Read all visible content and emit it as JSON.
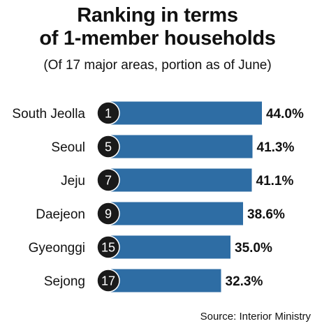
{
  "header": {
    "title_line1": "Ranking in terms",
    "title_line2": "of 1-member households",
    "subtitle": "(Of 17 major areas, portion as of June)"
  },
  "source": "Source: Interior Ministry",
  "colors": {
    "bar": "#2e6da4",
    "rank_circle": "#1a1a1a",
    "text": "#111111"
  },
  "chart_data": {
    "type": "bar",
    "orientation": "horizontal",
    "title": "Ranking in terms of 1-member households",
    "subtitle": "(Of 17 major areas, portion as of June)",
    "categories": [
      "South Jeolla",
      "Seoul",
      "Jeju",
      "Daejeon",
      "Gyeonggi",
      "Sejong"
    ],
    "ranks": [
      "1",
      "5",
      "7",
      "9",
      "15",
      "17"
    ],
    "values": [
      44.0,
      41.3,
      41.1,
      38.6,
      35.0,
      32.3
    ],
    "value_labels": [
      "44.0%",
      "41.3%",
      "41.1%",
      "38.6%",
      "35.0%",
      "32.3%"
    ],
    "unit": "%",
    "grid": false,
    "legend": "none"
  }
}
